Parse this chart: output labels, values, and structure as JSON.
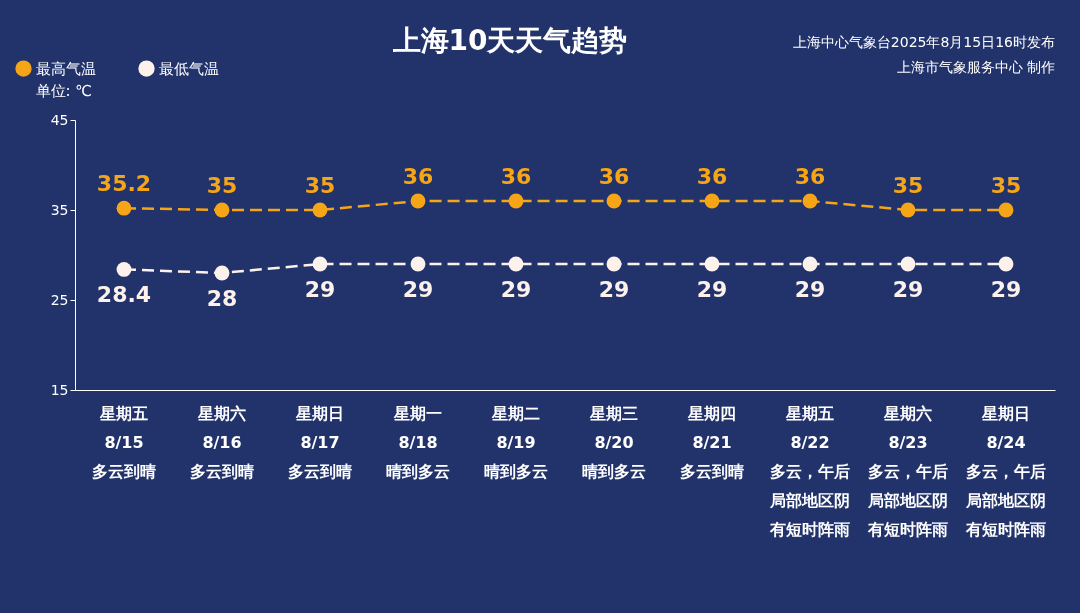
{
  "chart_data": {
    "type": "line",
    "title": "上海10天天气趋势",
    "ylabel": "单位: ℃",
    "annotations": [
      "上海中心气象台2025年8月15日16时发布",
      "上海市气象服务中心 制作"
    ],
    "categories": [
      "星期五\n8/15\n多云到晴",
      "星期六\n8/16\n多云到晴",
      "星期日\n8/17\n多云到晴",
      "星期一\n8/18\n晴到多云",
      "星期二\n8/19\n晴到多云",
      "星期三\n8/20\n晴到多云",
      "星期四\n8/21\n多云到晴",
      "星期五\n8/22\n多云，午后局部地区阴有短时阵雨",
      "星期六\n8/23\n多云，午后局部地区阴有短时阵雨",
      "星期日\n8/24\n多云，午后局部地区阴有短时阵雨"
    ],
    "series": [
      {
        "name": "最高气温",
        "color": "#f5a516",
        "values": [
          35.2,
          35,
          35,
          36,
          36,
          36,
          36,
          36,
          35,
          35
        ]
      },
      {
        "name": "最低气温",
        "color": "#fdf1ec",
        "values": [
          28.4,
          28,
          29,
          29,
          29,
          29,
          29,
          29,
          29,
          29
        ]
      }
    ],
    "ylim": [
      15,
      45
    ],
    "yticks": [
      15,
      25,
      35,
      45
    ],
    "grid": false,
    "legend": "top left",
    "marker": "circle",
    "line_style": "dashed",
    "data_labels": true
  }
}
